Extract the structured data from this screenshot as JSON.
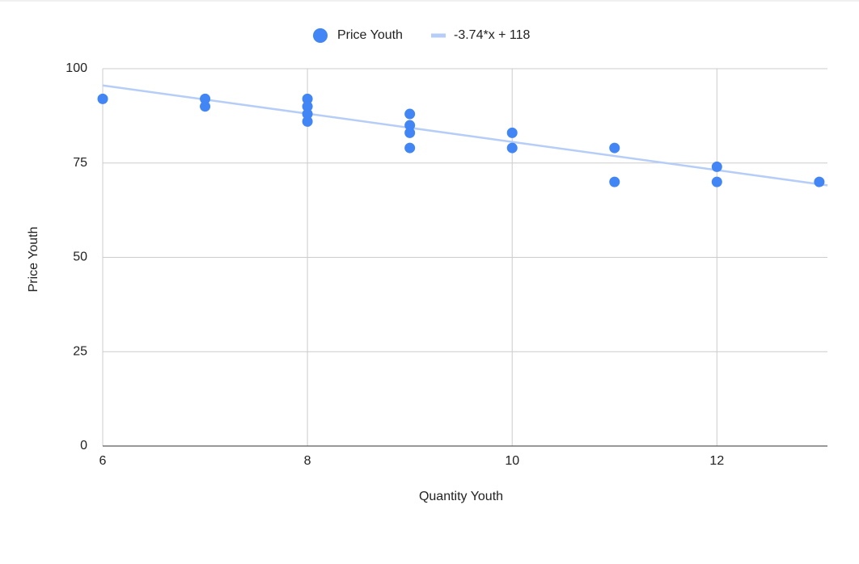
{
  "chart_data": {
    "type": "scatter",
    "x_label": "Quantity Youth",
    "y_label": "Price Youth",
    "series": [
      {
        "name": "Price Youth",
        "color": "#4285f4",
        "x": [
          6,
          7,
          7,
          8,
          8,
          8,
          8,
          9,
          9,
          9,
          9,
          10,
          10,
          11,
          11,
          12,
          12,
          13
        ],
        "y": [
          92,
          92,
          90,
          92,
          90,
          88,
          86,
          88,
          85,
          83,
          79,
          83,
          79,
          79,
          70,
          74,
          70,
          70
        ]
      }
    ],
    "trendline": {
      "name": "-3.74*x + 118",
      "slope": -3.74,
      "intercept": 118,
      "color": "#b5cdf7"
    },
    "xlim": [
      6,
      13.08
    ],
    "ylim": [
      0,
      100
    ],
    "xticks": [
      6,
      8,
      10,
      12
    ],
    "yticks": [
      0,
      25,
      50,
      75,
      100
    ],
    "grid": true
  }
}
